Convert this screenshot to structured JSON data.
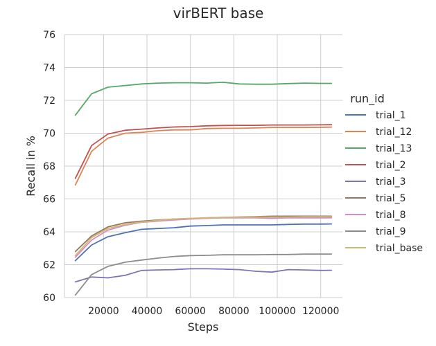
{
  "chart_data": {
    "type": "line",
    "title": "virBERT base",
    "xlabel": "Steps",
    "ylabel": "Recall in %",
    "xlim": [
      2000,
      130000
    ],
    "ylim": [
      60,
      76
    ],
    "xticks": [
      20000,
      40000,
      60000,
      80000,
      100000,
      120000
    ],
    "xtick_labels": [
      "20000",
      "40000",
      "60000",
      "80000",
      "100000",
      "120000"
    ],
    "yticks": [
      60,
      62,
      64,
      66,
      68,
      70,
      72,
      74,
      76
    ],
    "ytick_labels": [
      "60",
      "62",
      "64",
      "66",
      "68",
      "70",
      "72",
      "74",
      "76"
    ],
    "grid": true,
    "legend": {
      "title": "run_id",
      "placement": "right"
    },
    "x": [
      7000,
      14500,
      22000,
      30000,
      37500,
      45000,
      52500,
      60000,
      67500,
      75000,
      82500,
      90000,
      97500,
      105000,
      112500,
      120000,
      125000
    ],
    "series": [
      {
        "name": "trial_1",
        "color": "#4c72b0",
        "values": [
          62.25,
          63.2,
          63.7,
          63.95,
          64.15,
          64.2,
          64.25,
          64.35,
          64.38,
          64.42,
          64.42,
          64.42,
          64.42,
          64.45,
          64.47,
          64.47,
          64.48
        ]
      },
      {
        "name": "trial_12",
        "color": "#dd8452",
        "values": [
          66.85,
          68.9,
          69.7,
          70.0,
          70.05,
          70.15,
          70.2,
          70.2,
          70.28,
          70.3,
          70.3,
          70.32,
          70.35,
          70.35,
          70.35,
          70.36,
          70.37
        ]
      },
      {
        "name": "trial_13",
        "color": "#55a868",
        "values": [
          71.1,
          72.4,
          72.8,
          72.9,
          73.0,
          73.05,
          73.07,
          73.07,
          73.05,
          73.1,
          73.0,
          72.98,
          72.98,
          73.02,
          73.05,
          73.03,
          73.03
        ]
      },
      {
        "name": "trial_2",
        "color": "#c44e52",
        "values": [
          67.25,
          69.25,
          69.95,
          70.18,
          70.25,
          70.32,
          70.38,
          70.4,
          70.45,
          70.47,
          70.48,
          70.48,
          70.5,
          70.5,
          70.5,
          70.51,
          70.52
        ]
      },
      {
        "name": "trial_3",
        "color": "#8172b3",
        "values": [
          60.95,
          61.25,
          61.2,
          61.35,
          61.65,
          61.68,
          61.7,
          61.75,
          61.75,
          61.73,
          61.7,
          61.6,
          61.55,
          61.7,
          61.68,
          61.65,
          61.66
        ]
      },
      {
        "name": "trial_5",
        "color": "#937860",
        "values": [
          62.8,
          63.75,
          64.3,
          64.55,
          64.65,
          64.72,
          64.78,
          64.8,
          64.85,
          64.88,
          64.9,
          64.92,
          64.95,
          64.95,
          64.95,
          64.95,
          64.95
        ]
      },
      {
        "name": "trial_8",
        "color": "#da8bc3",
        "values": [
          62.45,
          63.5,
          64.1,
          64.4,
          64.58,
          64.65,
          64.72,
          64.78,
          64.82,
          64.85,
          64.85,
          64.85,
          64.82,
          64.85,
          64.85,
          64.85,
          64.85
        ]
      },
      {
        "name": "trial_9",
        "color": "#8c8c8c",
        "values": [
          60.15,
          61.4,
          61.9,
          62.15,
          62.28,
          62.4,
          62.5,
          62.55,
          62.57,
          62.6,
          62.6,
          62.6,
          62.62,
          62.62,
          62.65,
          62.65,
          62.65
        ]
      },
      {
        "name": "trial_base",
        "color": "#ccb974",
        "values": [
          62.55,
          63.65,
          64.2,
          64.45,
          64.6,
          64.7,
          64.78,
          64.82,
          64.85,
          64.88,
          64.88,
          64.9,
          64.9,
          64.9,
          64.92,
          64.92,
          64.92
        ]
      }
    ]
  }
}
